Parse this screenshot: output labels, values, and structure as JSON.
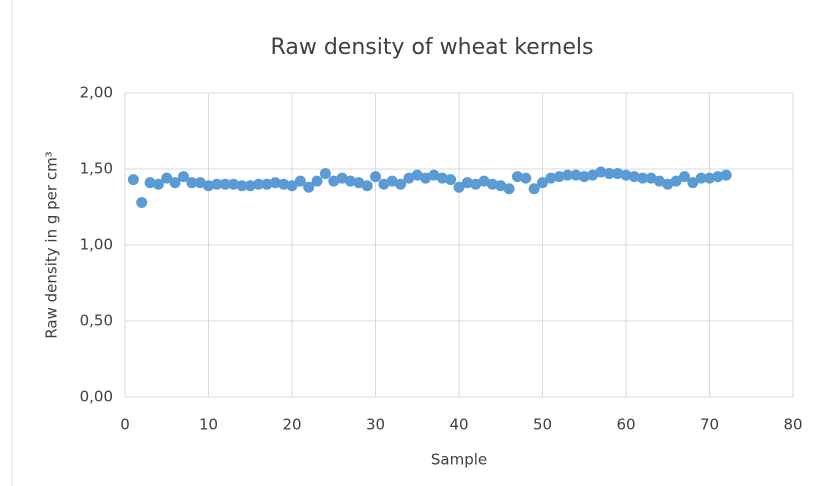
{
  "chart_data": {
    "type": "scatter",
    "title": "Raw density of wheat kernels",
    "x_label": "Sample",
    "y_label": "Raw density in g per cm³",
    "x": [
      1,
      2,
      3,
      4,
      5,
      6,
      7,
      8,
      9,
      10,
      11,
      12,
      13,
      14,
      15,
      16,
      17,
      18,
      19,
      20,
      21,
      22,
      23,
      24,
      25,
      26,
      27,
      28,
      29,
      30,
      31,
      32,
      33,
      34,
      35,
      36,
      37,
      38,
      39,
      40,
      41,
      42,
      43,
      44,
      45,
      46,
      47,
      48,
      49,
      50,
      51,
      52,
      53,
      54,
      55,
      56,
      57,
      58,
      59,
      60,
      61,
      62,
      63,
      64,
      65,
      66,
      67,
      68,
      69,
      70,
      71,
      72
    ],
    "values": [
      1.43,
      1.28,
      1.41,
      1.4,
      1.44,
      1.41,
      1.45,
      1.41,
      1.41,
      1.39,
      1.4,
      1.4,
      1.4,
      1.39,
      1.39,
      1.4,
      1.4,
      1.41,
      1.4,
      1.39,
      1.42,
      1.38,
      1.42,
      1.47,
      1.42,
      1.44,
      1.42,
      1.41,
      1.39,
      1.45,
      1.4,
      1.42,
      1.4,
      1.44,
      1.46,
      1.44,
      1.46,
      1.44,
      1.43,
      1.38,
      1.41,
      1.4,
      1.42,
      1.4,
      1.39,
      1.37,
      1.45,
      1.44,
      1.37,
      1.41,
      1.44,
      1.45,
      1.46,
      1.46,
      1.45,
      1.46,
      1.48,
      1.47,
      1.47,
      1.46,
      1.45,
      1.44,
      1.44,
      1.42,
      1.4,
      1.42,
      1.45,
      1.41,
      1.44,
      1.44,
      1.45,
      1.46
    ],
    "color": "#5b9bd5",
    "xlim": [
      0,
      80
    ],
    "xticks": [
      0,
      10,
      20,
      30,
      40,
      50,
      60,
      70,
      80
    ],
    "ylim": [
      0,
      2
    ],
    "yticks": [
      {
        "value": 0,
        "label": "0,00"
      },
      {
        "value": 0.5,
        "label": "0,50"
      },
      {
        "value": 1,
        "label": "1,00"
      },
      {
        "value": 1.5,
        "label": "1,50"
      },
      {
        "value": 2,
        "label": "2,00"
      }
    ],
    "grid": true
  }
}
